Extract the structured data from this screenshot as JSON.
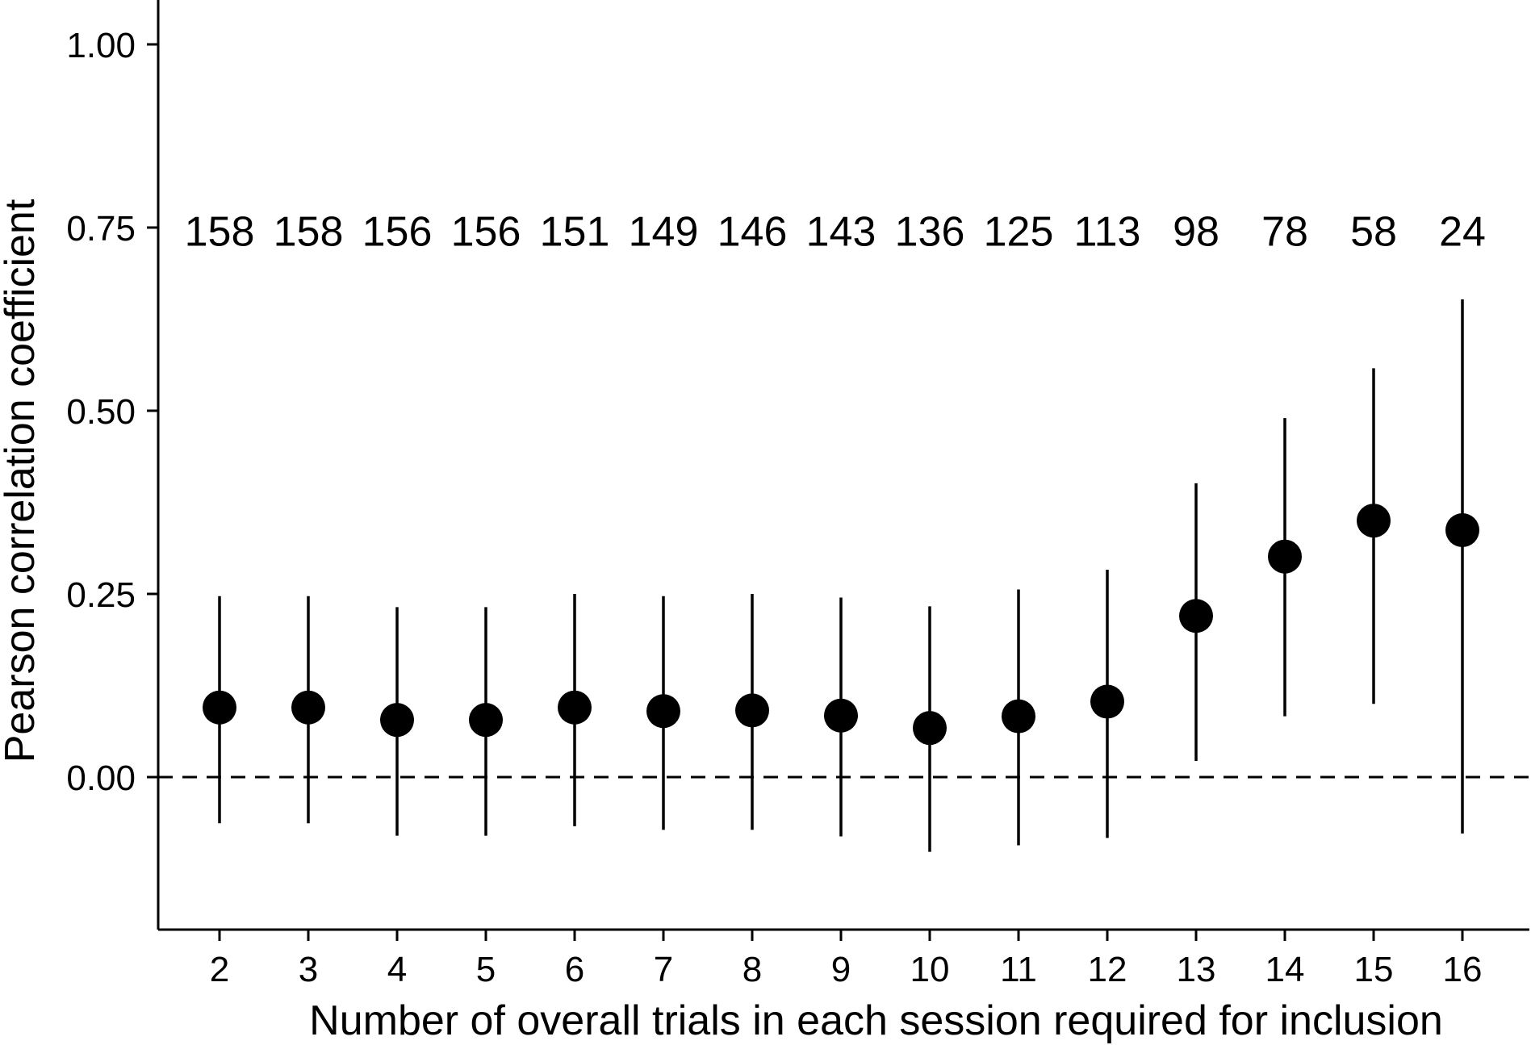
{
  "chart_data": {
    "type": "scatter",
    "title": "",
    "xlabel": "Number of overall trials in each session required for inclusion",
    "ylabel": "Pearson correlation coefficient",
    "x": [
      2,
      3,
      4,
      5,
      6,
      7,
      8,
      9,
      10,
      11,
      12,
      13,
      14,
      15,
      16
    ],
    "x_tick_labels": [
      "2",
      "3",
      "4",
      "5",
      "6",
      "7",
      "8",
      "9",
      "10",
      "11",
      "12",
      "13",
      "14",
      "15",
      "16"
    ],
    "y_ticks": [
      0.0,
      0.25,
      0.5,
      0.75,
      1.0
    ],
    "y_tick_labels": [
      "0.00",
      "0.25",
      "0.50",
      "0.75",
      "1.00"
    ],
    "ylim": [
      -0.21,
      1.06
    ],
    "xlim": [
      1.3,
      16.7
    ],
    "values": [
      0.095,
      0.095,
      0.078,
      0.078,
      0.095,
      0.09,
      0.091,
      0.084,
      0.067,
      0.083,
      0.103,
      0.22,
      0.301,
      0.35,
      0.337
    ],
    "ci_lower": [
      -0.063,
      -0.063,
      -0.08,
      -0.08,
      -0.067,
      -0.072,
      -0.072,
      -0.081,
      -0.102,
      -0.093,
      -0.083,
      0.022,
      0.083,
      0.1,
      -0.077
    ],
    "ci_upper": [
      0.247,
      0.247,
      0.232,
      0.232,
      0.25,
      0.247,
      0.25,
      0.245,
      0.233,
      0.256,
      0.283,
      0.401,
      0.49,
      0.558,
      0.652
    ],
    "n_labels": [
      "158",
      "158",
      "156",
      "156",
      "151",
      "149",
      "146",
      "143",
      "136",
      "125",
      "113",
      "98",
      "78",
      "58",
      "24"
    ],
    "n_label_y": 0.745,
    "reference_line": 0.0,
    "grid": false,
    "colors": {
      "points": "#000000",
      "errorbars": "#000000",
      "axes": "#000000"
    }
  }
}
